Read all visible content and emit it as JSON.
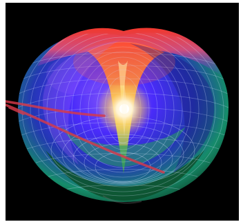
{
  "image": {
    "subject": "horn-torus-surface",
    "background_color": "#000000",
    "frame_color": "#ffffff",
    "surface_colors": {
      "top_rim": "#ff3b2f",
      "upper_funnel": "#ffd84a",
      "center_glow": "#fff4d6",
      "left_body": "#4b2cff",
      "lower_body": "#14c46a",
      "mesh": "#d7e3ff",
      "ray": "#d63a4a"
    }
  }
}
